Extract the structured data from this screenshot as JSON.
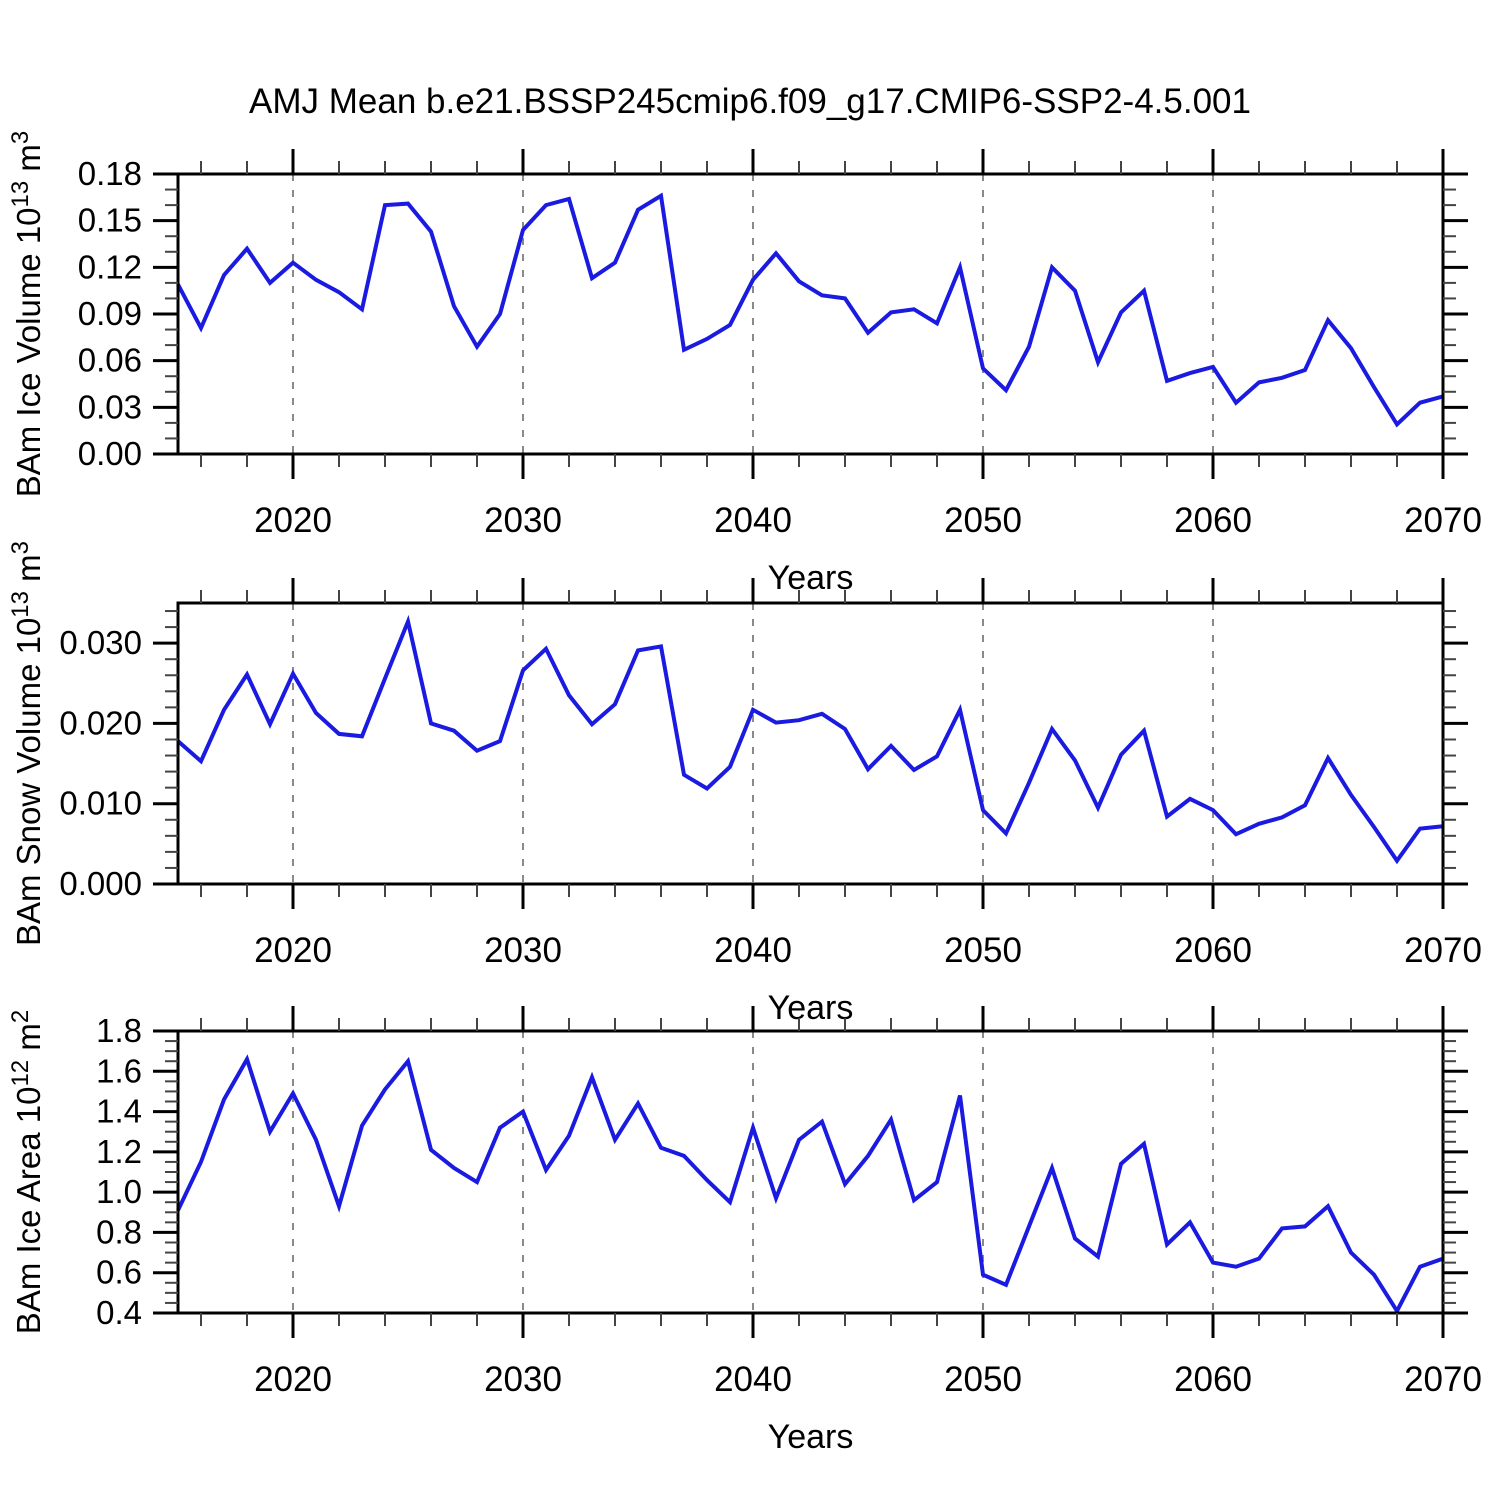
{
  "title": "AMJ Mean b.e21.BSSP245cmip6.f09_g17.CMIP6-SSP2-4.5.001",
  "colors": {
    "line": "#1a1ae0",
    "grid": "#8a8a8a",
    "axis": "#000000",
    "minor_tick": "#444444",
    "text": "#000000",
    "background": "#ffffff"
  },
  "chart_data": [
    {
      "type": "line",
      "ylabel": "BAm Ice Volume 10^13 m^3",
      "xlabel": "Years",
      "ylim": [
        0,
        0.18
      ],
      "xlim": [
        2015,
        2070
      ],
      "y_tick_labels": [
        "0.00",
        "0.03",
        "0.06",
        "0.09",
        "0.12",
        "0.15",
        "0.18"
      ],
      "y_minor_step": 0.01,
      "x_tick_labels": [
        "2020",
        "2030",
        "2040",
        "2050",
        "2060",
        "2070"
      ],
      "x_minor_step": 2,
      "gridline_years": [
        2020,
        2030,
        2040,
        2050,
        2060
      ],
      "grid_on": true,
      "legend": "none",
      "x": [
        2015,
        2016,
        2017,
        2018,
        2019,
        2020,
        2021,
        2022,
        2023,
        2024,
        2025,
        2026,
        2027,
        2028,
        2029,
        2030,
        2031,
        2032,
        2033,
        2034,
        2035,
        2036,
        2037,
        2038,
        2039,
        2040,
        2041,
        2042,
        2043,
        2044,
        2045,
        2046,
        2047,
        2048,
        2049,
        2050,
        2051,
        2052,
        2053,
        2054,
        2055,
        2056,
        2057,
        2058,
        2059,
        2060,
        2061,
        2062,
        2063,
        2064,
        2065,
        2066,
        2067,
        2068,
        2069,
        2070
      ],
      "values": [
        0.109,
        0.081,
        0.115,
        0.132,
        0.11,
        0.123,
        0.112,
        0.104,
        0.093,
        0.16,
        0.161,
        0.143,
        0.095,
        0.069,
        0.09,
        0.144,
        0.16,
        0.164,
        0.113,
        0.123,
        0.157,
        0.166,
        0.067,
        0.074,
        0.083,
        0.112,
        0.129,
        0.111,
        0.102,
        0.1,
        0.078,
        0.091,
        0.093,
        0.084,
        0.12,
        0.055,
        0.041,
        0.069,
        0.12,
        0.105,
        0.059,
        0.091,
        0.105,
        0.047,
        0.052,
        0.056,
        0.033,
        0.046,
        0.049,
        0.054,
        0.086,
        0.068,
        0.043,
        0.019,
        0.033,
        0.037
      ]
    },
    {
      "type": "line",
      "ylabel": "BAm Snow Volume 10^13 m^3",
      "xlabel": "Years",
      "ylim": [
        0,
        0.035
      ],
      "xlim": [
        2015,
        2070
      ],
      "y_tick_labels": [
        "0.000",
        "0.010",
        "0.020",
        "0.030"
      ],
      "y_minor_step": 0.002,
      "x_tick_labels": [
        "2020",
        "2030",
        "2040",
        "2050",
        "2060",
        "2070"
      ],
      "x_minor_step": 2,
      "gridline_years": [
        2020,
        2030,
        2040,
        2050,
        2060
      ],
      "grid_on": true,
      "legend": "none",
      "x": [
        2015,
        2016,
        2017,
        2018,
        2019,
        2020,
        2021,
        2022,
        2023,
        2024,
        2025,
        2026,
        2027,
        2028,
        2029,
        2030,
        2031,
        2032,
        2033,
        2034,
        2035,
        2036,
        2037,
        2038,
        2039,
        2040,
        2041,
        2042,
        2043,
        2044,
        2045,
        2046,
        2047,
        2048,
        2049,
        2050,
        2051,
        2052,
        2053,
        2054,
        2055,
        2056,
        2057,
        2058,
        2059,
        2060,
        2061,
        2062,
        2063,
        2064,
        2065,
        2066,
        2067,
        2068,
        2069,
        2070
      ],
      "values": [
        0.0178,
        0.0153,
        0.0217,
        0.0261,
        0.0199,
        0.0262,
        0.0213,
        0.0187,
        0.0184,
        0.0256,
        0.0327,
        0.02,
        0.0191,
        0.0166,
        0.0178,
        0.0266,
        0.0293,
        0.0235,
        0.0199,
        0.0224,
        0.0291,
        0.0296,
        0.0136,
        0.0119,
        0.0146,
        0.0217,
        0.0201,
        0.0204,
        0.0212,
        0.0193,
        0.0143,
        0.0172,
        0.0142,
        0.0159,
        0.0217,
        0.0092,
        0.0063,
        0.0126,
        0.0193,
        0.0154,
        0.0095,
        0.0161,
        0.0191,
        0.0084,
        0.0106,
        0.0092,
        0.0062,
        0.0075,
        0.0083,
        0.0098,
        0.0157,
        0.0111,
        0.0071,
        0.0029,
        0.0069,
        0.0072
      ]
    },
    {
      "type": "line",
      "ylabel": "BAm Ice Area 10^12 m^2",
      "xlabel": "Years",
      "ylim": [
        0.4,
        1.8
      ],
      "xlim": [
        2015,
        2070
      ],
      "y_tick_labels": [
        "0.4",
        "0.6",
        "0.8",
        "1.0",
        "1.2",
        "1.4",
        "1.6",
        "1.8"
      ],
      "y_minor_step": 0.05,
      "x_tick_labels": [
        "2020",
        "2030",
        "2040",
        "2050",
        "2060",
        "2070"
      ],
      "x_minor_step": 2,
      "gridline_years": [
        2020,
        2030,
        2040,
        2050,
        2060
      ],
      "grid_on": true,
      "legend": "none",
      "x": [
        2015,
        2016,
        2017,
        2018,
        2019,
        2020,
        2021,
        2022,
        2023,
        2024,
        2025,
        2026,
        2027,
        2028,
        2029,
        2030,
        2031,
        2032,
        2033,
        2034,
        2035,
        2036,
        2037,
        2038,
        2039,
        2040,
        2041,
        2042,
        2043,
        2044,
        2045,
        2046,
        2047,
        2048,
        2049,
        2050,
        2051,
        2052,
        2053,
        2054,
        2055,
        2056,
        2057,
        2058,
        2059,
        2060,
        2061,
        2062,
        2063,
        2064,
        2065,
        2066,
        2067,
        2068,
        2069,
        2070
      ],
      "values": [
        0.91,
        1.15,
        1.46,
        1.66,
        1.3,
        1.49,
        1.26,
        0.93,
        1.33,
        1.51,
        1.65,
        1.21,
        1.12,
        1.05,
        1.32,
        1.4,
        1.11,
        1.28,
        1.57,
        1.26,
        1.44,
        1.22,
        1.18,
        1.06,
        0.95,
        1.32,
        0.97,
        1.26,
        1.35,
        1.04,
        1.18,
        1.36,
        0.96,
        1.05,
        1.48,
        0.59,
        0.54,
        0.83,
        1.12,
        0.77,
        0.68,
        1.14,
        1.24,
        0.74,
        0.85,
        0.65,
        0.63,
        0.67,
        0.82,
        0.83,
        0.93,
        0.7,
        0.59,
        0.41,
        0.63,
        0.67
      ]
    }
  ]
}
